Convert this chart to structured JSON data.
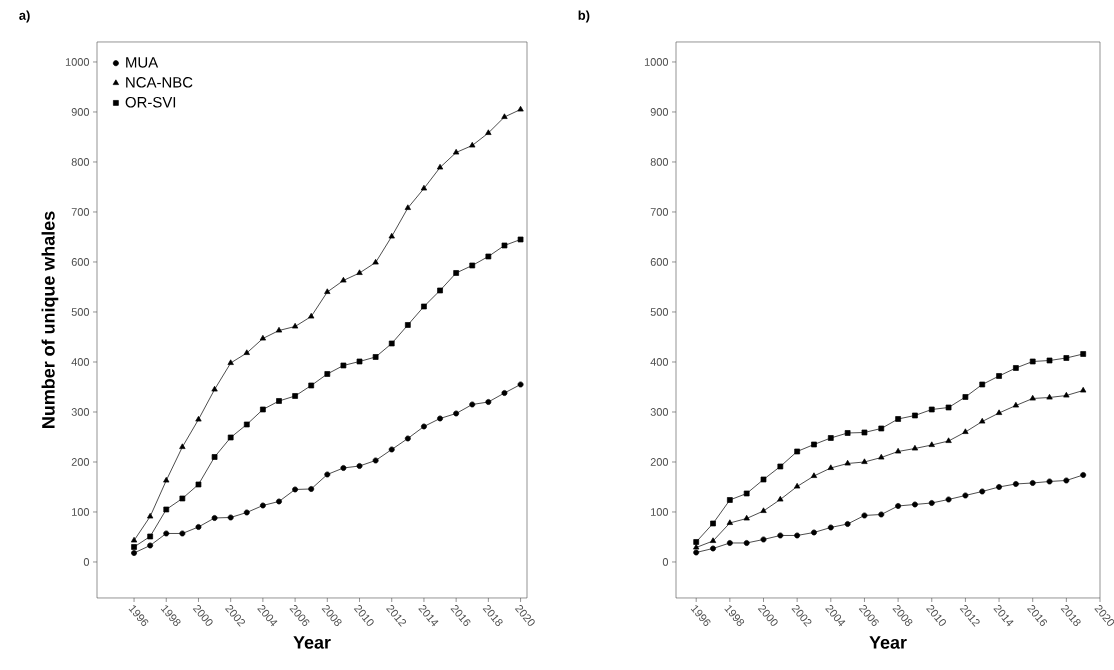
{
  "chart_data": [
    {
      "type": "line",
      "title": "a)",
      "xlabel": "Year",
      "ylabel": "Number of unique whales",
      "x": [
        1996,
        1997,
        1998,
        1999,
        2000,
        2001,
        2002,
        2003,
        2004,
        2005,
        2006,
        2007,
        2008,
        2009,
        2010,
        2011,
        2012,
        2013,
        2014,
        2015,
        2016,
        2017,
        2018,
        2019,
        2020
      ],
      "series": [
        {
          "name": "MUA",
          "color": "#000000",
          "marker": "circle",
          "values": [
            18,
            33,
            57,
            57,
            70,
            88,
            89,
            99,
            113,
            121,
            145,
            146,
            175,
            188,
            192,
            203,
            225,
            247,
            271,
            287,
            297,
            315,
            320,
            338,
            355
          ]
        },
        {
          "name": "NCA-NBC",
          "color": "#000000",
          "marker": "triangle",
          "values": [
            43,
            91,
            163,
            230,
            285,
            345,
            398,
            418,
            447,
            463,
            471,
            491,
            540,
            563,
            578,
            599,
            651,
            708,
            747,
            789,
            819,
            833,
            858,
            890,
            905
          ]
        },
        {
          "name": "OR-SVI",
          "color": "#000000",
          "marker": "square",
          "values": [
            30,
            51,
            105,
            127,
            155,
            210,
            249,
            275,
            305,
            322,
            332,
            353,
            376,
            393,
            401,
            410,
            437,
            474,
            511,
            543,
            578,
            593,
            611,
            633,
            645
          ]
        }
      ],
      "xlim": [
        1993.7,
        2020.4
      ],
      "ylim": [
        -72,
        1040
      ],
      "xticks": [
        1996,
        1998,
        2000,
        2002,
        2004,
        2006,
        2008,
        2010,
        2012,
        2014,
        2016,
        2018,
        2020
      ],
      "yticks": [
        0,
        100,
        200,
        300,
        400,
        500,
        600,
        700,
        800,
        900,
        1000
      ],
      "grid": false,
      "legend": "top left",
      "line_style": "solid"
    },
    {
      "type": "line",
      "title": "b)",
      "xlabel": "Year",
      "x": [
        1996,
        1997,
        1998,
        1999,
        2000,
        2001,
        2002,
        2003,
        2004,
        2005,
        2006,
        2007,
        2008,
        2009,
        2010,
        2011,
        2012,
        2013,
        2014,
        2015,
        2016,
        2017,
        2018,
        2019
      ],
      "series": [
        {
          "color": "#000000",
          "marker": "circle",
          "values": [
            19,
            27,
            38,
            38,
            45,
            53,
            53,
            59,
            69,
            76,
            93,
            95,
            112,
            115,
            118,
            125,
            133,
            141,
            150,
            156,
            158,
            161,
            163,
            174
          ]
        },
        {
          "color": "#000000",
          "marker": "triangle",
          "values": [
            29,
            42,
            78,
            87,
            102,
            125,
            151,
            172,
            188,
            197,
            200,
            209,
            221,
            227,
            234,
            242,
            260,
            281,
            298,
            313,
            327,
            329,
            333,
            343
          ]
        },
        {
          "color": "#000000",
          "marker": "square",
          "values": [
            40,
            77,
            124,
            137,
            165,
            191,
            221,
            235,
            248,
            258,
            259,
            267,
            286,
            293,
            305,
            309,
            330,
            355,
            372,
            388,
            401,
            403,
            408,
            416
          ]
        }
      ],
      "xlim": [
        1994.8,
        2020
      ],
      "ylim": [
        -72,
        1040
      ],
      "xticks": [
        1996,
        1998,
        2000,
        2002,
        2004,
        2006,
        2008,
        2010,
        2012,
        2014,
        2016,
        2018,
        2020
      ],
      "yticks": [
        0,
        100,
        200,
        300,
        400,
        500,
        600,
        700,
        800,
        900,
        1000
      ],
      "grid": false,
      "legend": false,
      "line_style": "solid"
    }
  ]
}
